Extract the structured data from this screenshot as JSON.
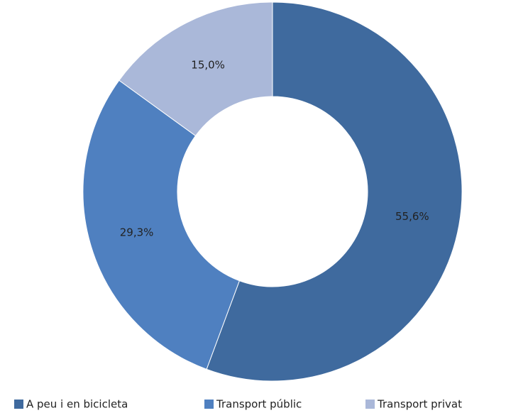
{
  "chart_data": {
    "type": "donut",
    "categories": [
      "A peu i en bicicleta",
      "Transport públic",
      "Transport privat"
    ],
    "values": [
      55.6,
      29.3,
      15.0
    ],
    "value_labels": [
      "55,6%",
      "29,3%",
      "15,0%"
    ],
    "colors": [
      "#3f6a9e",
      "#4f80c0",
      "#aab8d9"
    ],
    "legend": "bottom"
  }
}
